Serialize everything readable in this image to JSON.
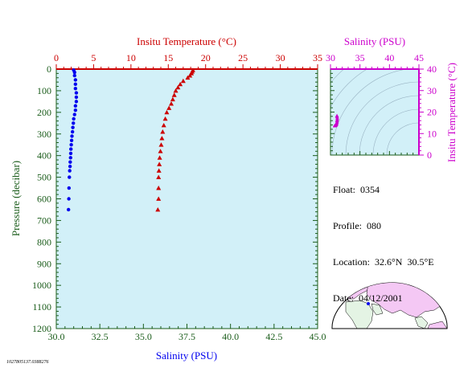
{
  "colors": {
    "plot_bg": "#d2f0f8",
    "temperature": "#cc0000",
    "salinity_axis": "#cc00cc",
    "salinity_points": "#0000ee",
    "axis_frame": "#1a5c1a",
    "map_land": "#f4c8f4",
    "map_land_other": "#e4f4e4",
    "grid": "#9ab4c4"
  },
  "chart_data": [
    {
      "type": "scatter",
      "title": "",
      "top_xlabel": "Insitu Temperature (°C)",
      "bottom_xlabel": "Salinity (PSU)",
      "ylabel": "Pressure (decibar)",
      "top_xticks": [
        "0",
        "5",
        "10",
        "15",
        "20",
        "25",
        "30",
        "35"
      ],
      "bottom_xticks": [
        "30.0",
        "32.5",
        "35.0",
        "37.5",
        "40.0",
        "42.5",
        "45.0"
      ],
      "yticks": [
        "0",
        "100",
        "200",
        "300",
        "400",
        "500",
        "600",
        "700",
        "800",
        "900",
        "1000",
        "1100",
        "1200"
      ],
      "temperature_xlim": [
        0,
        35
      ],
      "salinity_xlim": [
        30,
        45
      ],
      "ylim": [
        1200,
        0
      ],
      "grid": false,
      "series": [
        {
          "marker": "triangle",
          "axis": "temperature",
          "points": [
            [
              18.3,
              5
            ],
            [
              18.2,
              12
            ],
            [
              18.1,
              20
            ],
            [
              17.9,
              30
            ],
            [
              17.6,
              40
            ],
            [
              17.0,
              55
            ],
            [
              16.6,
              70
            ],
            [
              16.3,
              85
            ],
            [
              16.0,
              100
            ],
            [
              15.8,
              120
            ],
            [
              15.6,
              140
            ],
            [
              15.4,
              160
            ],
            [
              15.1,
              180
            ],
            [
              14.8,
              200
            ],
            [
              14.6,
              230
            ],
            [
              14.4,
              260
            ],
            [
              14.25,
              290
            ],
            [
              14.15,
              320
            ],
            [
              14.05,
              350
            ],
            [
              13.95,
              380
            ],
            [
              13.85,
              410
            ],
            [
              13.8,
              440
            ],
            [
              13.75,
              470
            ],
            [
              13.7,
              500
            ],
            [
              13.7,
              550
            ],
            [
              13.7,
              600
            ],
            [
              13.6,
              650
            ]
          ]
        },
        {
          "marker": "circle",
          "axis": "salinity",
          "points": [
            [
              31.0,
              5
            ],
            [
              31.05,
              15
            ],
            [
              31.05,
              30
            ],
            [
              31.1,
              50
            ],
            [
              31.1,
              70
            ],
            [
              31.1,
              90
            ],
            [
              31.15,
              110
            ],
            [
              31.15,
              130
            ],
            [
              31.15,
              150
            ],
            [
              31.1,
              170
            ],
            [
              31.1,
              190
            ],
            [
              31.05,
              210
            ],
            [
              31.0,
              230
            ],
            [
              30.98,
              250
            ],
            [
              30.95,
              270
            ],
            [
              30.93,
              290
            ],
            [
              30.9,
              310
            ],
            [
              30.88,
              330
            ],
            [
              30.86,
              350
            ],
            [
              30.84,
              370
            ],
            [
              30.83,
              390
            ],
            [
              30.82,
              410
            ],
            [
              30.8,
              430
            ],
            [
              30.79,
              450
            ],
            [
              30.77,
              470
            ],
            [
              30.75,
              500
            ],
            [
              30.73,
              550
            ],
            [
              30.72,
              600
            ],
            [
              30.7,
              650
            ]
          ]
        }
      ]
    },
    {
      "type": "scatter",
      "title": "",
      "xlabel": "Salinity (PSU)",
      "ylabel": "Insitu Temperature (°C)",
      "xticks": [
        "30",
        "35",
        "40",
        "45"
      ],
      "yticks": [
        "0",
        "10",
        "20",
        "30",
        "40"
      ],
      "xlim": [
        30,
        45
      ],
      "ylim": [
        0,
        40
      ],
      "grid": false,
      "series": [
        {
          "marker": "triangle",
          "points": [
            [
              31.1,
              18.3
            ],
            [
              31.1,
              18.0
            ],
            [
              31.15,
              17.3
            ],
            [
              31.15,
              16.6
            ],
            [
              31.1,
              16.0
            ],
            [
              31.1,
              15.4
            ],
            [
              31.05,
              14.8
            ],
            [
              31.0,
              14.4
            ],
            [
              30.95,
              14.2
            ],
            [
              30.9,
              14.0
            ],
            [
              30.85,
              13.8
            ],
            [
              30.8,
              13.7
            ],
            [
              30.75,
              13.7
            ],
            [
              30.72,
              13.6
            ],
            [
              30.7,
              13.6
            ]
          ]
        }
      ]
    }
  ],
  "info": {
    "float_label": "Float:",
    "float_value": "0354",
    "profile_label": "Profile:",
    "profile_value": "080",
    "location_label": "Location:",
    "location_value": "32.6°N  30.5°E",
    "date_label": "Date:",
    "date_value": "04/12/2001"
  },
  "footer_id": "1027805137.0388276",
  "map": {
    "marker_lat": 32.6,
    "marker_lon": 30.5
  }
}
